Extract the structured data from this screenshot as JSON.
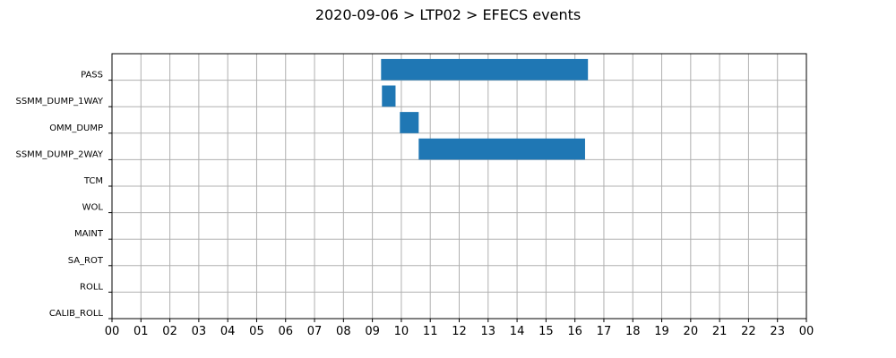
{
  "chart_data": {
    "type": "bar",
    "orientation": "horizontal-gantt",
    "title": "2020-09-06 > LTP02 > EFECS events",
    "xlabel": "",
    "ylabel": "",
    "xlim": [
      0,
      24
    ],
    "x_ticks": [
      "00",
      "01",
      "02",
      "03",
      "04",
      "05",
      "06",
      "07",
      "08",
      "09",
      "10",
      "11",
      "12",
      "13",
      "14",
      "15",
      "16",
      "17",
      "18",
      "19",
      "20",
      "21",
      "22",
      "23",
      "00"
    ],
    "categories": [
      "PASS",
      "SSMM_DUMP_1WAY",
      "OMM_DUMP",
      "SSMM_DUMP_2WAY",
      "TCM",
      "WOL",
      "MAINT",
      "SA_ROT",
      "ROLL",
      "CALIB_ROLL"
    ],
    "series": [
      {
        "color": "#1f77b4",
        "events": [
          {
            "category": "PASS",
            "start": 9.3,
            "end": 16.45
          },
          {
            "category": "SSMM_DUMP_1WAY",
            "start": 9.33,
            "end": 9.8
          },
          {
            "category": "OMM_DUMP",
            "start": 9.95,
            "end": 10.6
          },
          {
            "category": "SSMM_DUMP_2WAY",
            "start": 10.6,
            "end": 16.35
          }
        ]
      }
    ],
    "grid": true
  }
}
